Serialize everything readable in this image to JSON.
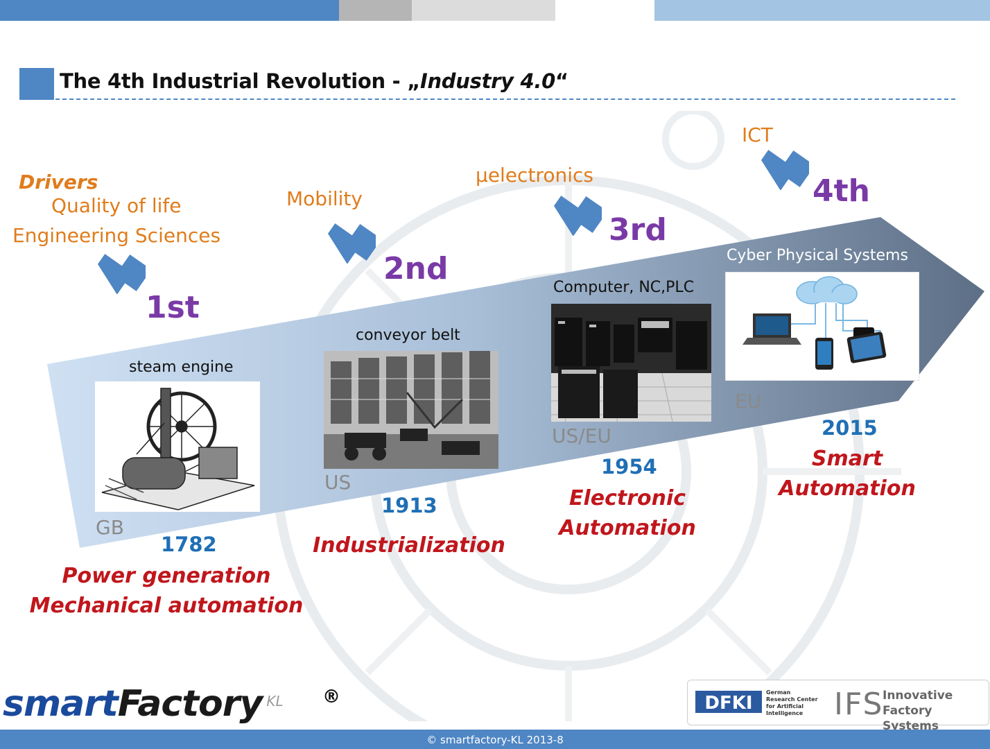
{
  "title": {
    "prefix": "The 4th Industrial Revolution  -  „",
    "italic": "Industry 4.0",
    "suffix": "“"
  },
  "drivers": {
    "heading": "Drivers",
    "line1": "Quality of life",
    "line2": "Engineering Sciences"
  },
  "stages": [
    {
      "driver": "",
      "ordinal": "1st",
      "caption": "steam engine",
      "region": "GB",
      "year": "1782",
      "label_line1": "Power generation",
      "label_line2": "Mechanical automation"
    },
    {
      "driver": "Mobility",
      "ordinal": "2nd",
      "caption": "conveyor belt",
      "region": "US",
      "year": "1913",
      "label_line1": "Industrialization",
      "label_line2": ""
    },
    {
      "driver": "µelectronics",
      "ordinal": "3rd",
      "caption": "Computer, NC,PLC",
      "region": "US/EU",
      "year": "1954",
      "label_line1": "Electronic",
      "label_line2": "Automation"
    },
    {
      "driver": "ICT",
      "ordinal": "4th",
      "caption": "Cyber Physical Systems",
      "region": "EU",
      "year": "2015",
      "label_line1": "Smart",
      "label_line2": "Automation"
    }
  ],
  "logo": {
    "smart": "smart",
    "factory": "Factory",
    "kl": "KL",
    "registered": "®"
  },
  "partners": {
    "dfki": "DFKI",
    "dfki_line1": "German",
    "dfki_line2": "Research Center",
    "dfki_line3": "for Artificial",
    "dfki_line4": "Intelligence",
    "ifs": "IFS",
    "ifs_line1": "Innovative",
    "ifs_line2": "Factory Systems"
  },
  "footer": "© smartfactory-KL 2013-8",
  "colors": {
    "accent_blue": "#4f86c4",
    "driver_orange": "#e07c1c",
    "ordinal_purple": "#7a3aa6",
    "year_blue": "#1f6fb5",
    "label_red": "#c0161c"
  }
}
